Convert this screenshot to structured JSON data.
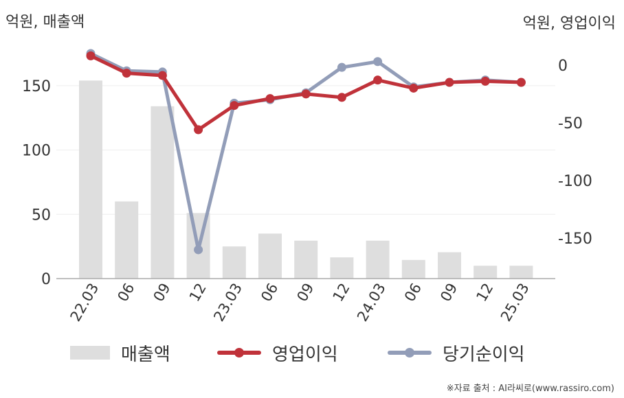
{
  "units": {
    "left": "억원, 매출액",
    "right": "억원, 영업이익"
  },
  "source": "※자료 출처 : AI라씨로(www.rassiro.com)",
  "colors": {
    "sales": "#dedede",
    "operating_profit": "#c0323a",
    "net_profit": "#929db8",
    "grid": "#eeeeee",
    "axis": "#aaaaaa"
  },
  "chart_data": {
    "type": "bar+line",
    "categories": [
      "22.03",
      "06",
      "09",
      "12",
      "23.03",
      "06",
      "09",
      "12",
      "24.03",
      "06",
      "09",
      "12",
      "25.03"
    ],
    "left_axis": {
      "range": [
        0,
        175
      ],
      "ticks": [
        0,
        50,
        100,
        150
      ]
    },
    "right_axis": {
      "range": [
        -185,
        10
      ],
      "ticks": [
        0,
        -50,
        -100,
        -150
      ]
    },
    "series": [
      {
        "name": "매출액",
        "type": "bar",
        "axis": "left",
        "values": [
          154,
          60,
          134,
          51,
          25,
          35,
          29.5,
          16.5,
          29.5,
          14.5,
          20.5,
          10,
          10
        ]
      },
      {
        "name": "영업이익",
        "type": "line",
        "axis": "right",
        "values": [
          8,
          -7,
          -9,
          -56,
          -35,
          -29,
          -25,
          -28,
          -13,
          -20,
          -15,
          -14,
          -15
        ]
      },
      {
        "name": "당기순이익",
        "type": "line",
        "axis": "right",
        "values": [
          10,
          -5,
          -6,
          -160,
          -33,
          -30,
          -24,
          -2,
          3,
          -19,
          -15,
          -13,
          -15
        ]
      }
    ],
    "grid": true,
    "legend": "bottom"
  }
}
